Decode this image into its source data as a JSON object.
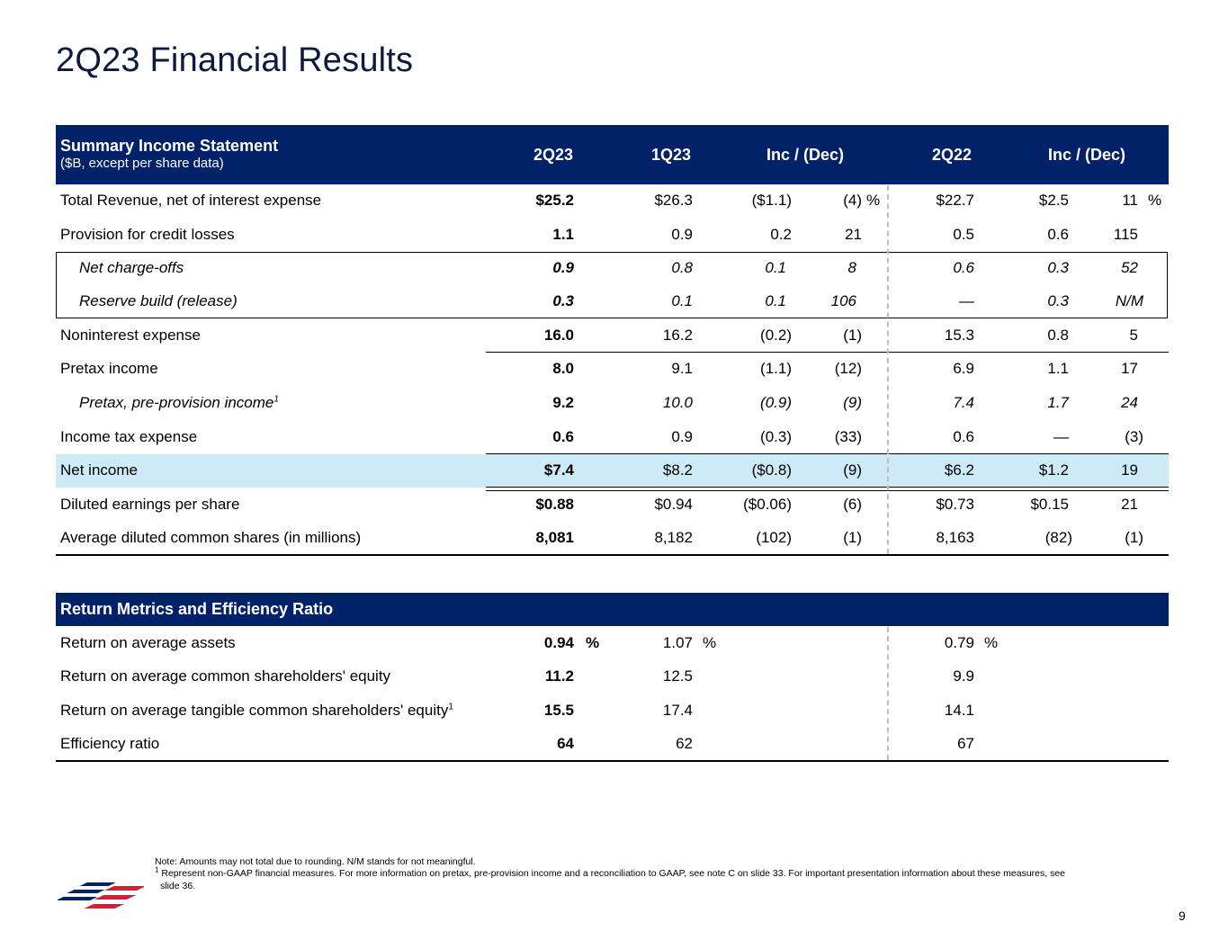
{
  "title": "2Q23 Financial Results",
  "income": {
    "header": {
      "label": "Summary Income Statement",
      "sublabel": "($B, except per share data)",
      "col_2q23": "2Q23",
      "col_1q23": "1Q23",
      "col_incdec1": "Inc / (Dec)",
      "col_2q22": "2Q22",
      "col_incdec2": "Inc / (Dec)"
    },
    "rows": [
      {
        "label": "Total Revenue, net of interest expense",
        "v2q23": "$25.2",
        "v1q23": "$26.3",
        "d1": "($1.1)",
        "p1": "(4)",
        "p1u": "%",
        "v2q22": "$22.7",
        "d2": "$2.5",
        "p2": "11",
        "p2u": "%"
      },
      {
        "label": "Provision for credit losses",
        "v2q23": "1.1",
        "v1q23": "0.9",
        "d1": "0.2",
        "p1": "21",
        "v2q22": "0.5",
        "d2": "0.6",
        "p2": "115"
      },
      {
        "label": "Net charge-offs",
        "v2q23": "0.9",
        "v1q23": "0.8",
        "d1": "0.1",
        "p1": "8",
        "v2q22": "0.6",
        "d2": "0.3",
        "p2": "52"
      },
      {
        "label": "Reserve build (release)",
        "v2q23": "0.3",
        "v1q23": "0.1",
        "d1": "0.1",
        "p1": "106",
        "v2q22": "—",
        "d2": "0.3",
        "p2": "N/M"
      },
      {
        "label": "Noninterest expense",
        "v2q23": "16.0",
        "v1q23": "16.2",
        "d1": "(0.2)",
        "p1": "(1)",
        "v2q22": "15.3",
        "d2": "0.8",
        "p2": "5"
      },
      {
        "label": "Pretax income",
        "v2q23": "8.0",
        "v1q23": "9.1",
        "d1": "(1.1)",
        "p1": "(12)",
        "v2q22": "6.9",
        "d2": "1.1",
        "p2": "17"
      },
      {
        "label": "Pretax, pre-provision income",
        "sup": "1",
        "v2q23": "9.2",
        "v1q23": "10.0",
        "d1": "(0.9)",
        "p1": "(9)",
        "v2q22": "7.4",
        "d2": "1.7",
        "p2": "24"
      },
      {
        "label": "Income tax expense",
        "v2q23": "0.6",
        "v1q23": "0.9",
        "d1": "(0.3)",
        "p1": "(33)",
        "v2q22": "0.6",
        "d2": "—",
        "p2": "(3)"
      },
      {
        "label": "Net income",
        "v2q23": "$7.4",
        "v1q23": "$8.2",
        "d1": "($0.8)",
        "p1": "(9)",
        "v2q22": "$6.2",
        "d2": "$1.2",
        "p2": "19"
      },
      {
        "label": "Diluted earnings per share",
        "v2q23": "$0.88",
        "v1q23": "$0.94",
        "d1": "($0.06)",
        "p1": "(6)",
        "v2q22": "$0.73",
        "d2": "$0.15",
        "p2": "21"
      },
      {
        "label": "Average diluted common shares (in millions)",
        "v2q23": "8,081",
        "v1q23": "8,182",
        "d1": "(102)",
        "p1": "(1)",
        "v2q22": "8,163",
        "d2": "(82)",
        "p2": "(1)"
      }
    ]
  },
  "returns": {
    "header": "Return Metrics and Efficiency Ratio",
    "rows": [
      {
        "label": "Return on average assets",
        "v2q23": "0.94",
        "u1": "%",
        "v1q23": "1.07",
        "u2": "%",
        "v2q22": "0.79",
        "u3": "%"
      },
      {
        "label": "Return on average common shareholders' equity",
        "v2q23": "11.2",
        "v1q23": "12.5",
        "v2q22": "9.9"
      },
      {
        "label": "Return on average tangible common shareholders' equity",
        "sup": "1",
        "v2q23": "15.5",
        "v1q23": "17.4",
        "v2q22": "14.1"
      },
      {
        "label": "Efficiency ratio",
        "v2q23": "64",
        "v1q23": "62",
        "v2q22": "67"
      }
    ]
  },
  "notes": {
    "line1": "Note: Amounts may not total due to rounding. N/M stands for not meaningful.",
    "sup": "1",
    "line2": "Represent non-GAAP financial measures. For more information on pretax, pre-provision income and a reconciliation to GAAP, see note C on slide 33. For important presentation information about these measures, see",
    "line3": "slide 36."
  },
  "page_number": "9",
  "colors": {
    "navy": "#012169",
    "highlight": "#cdeaf6",
    "flag_red": "#e31837"
  }
}
